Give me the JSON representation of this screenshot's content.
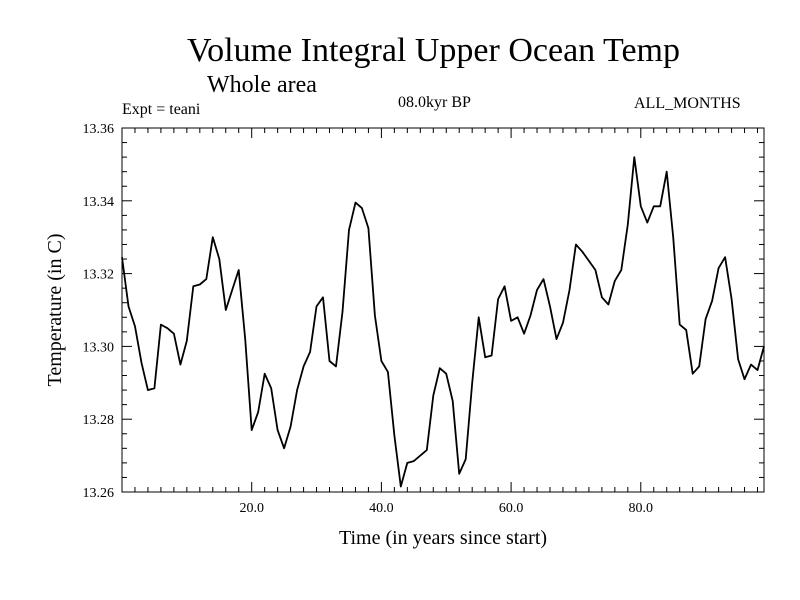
{
  "chart_data": {
    "type": "line",
    "title": "Volume Integral Upper Ocean Temp",
    "subtitle": "Whole area",
    "experiment_label": "Expt = teani",
    "period_label": "08.0kyr BP",
    "months_label": "ALL_MONTHS",
    "xlabel": "Time (in years since start)",
    "ylabel": "Temperature (in C)",
    "xlim": [
      0,
      99
    ],
    "ylim": [
      13.26,
      13.36
    ],
    "x_ticks": [
      20,
      40,
      60,
      80
    ],
    "x_tick_labels": [
      "20.0",
      "40.0",
      "60.0",
      "80.0"
    ],
    "y_ticks": [
      13.26,
      13.28,
      13.3,
      13.32,
      13.34,
      13.36
    ],
    "y_tick_labels": [
      "13.26",
      "13.28",
      "13.30",
      "13.32",
      "13.34",
      "13.36"
    ],
    "series": [
      {
        "name": "Temperature",
        "color": "#000000",
        "x": [
          0,
          1,
          2,
          3,
          4,
          5,
          6,
          7,
          8,
          9,
          10,
          11,
          12,
          13,
          14,
          15,
          16,
          17,
          18,
          19,
          20,
          21,
          22,
          23,
          24,
          25,
          26,
          27,
          28,
          29,
          30,
          31,
          32,
          33,
          34,
          35,
          36,
          37,
          38,
          39,
          40,
          41,
          42,
          43,
          44,
          45,
          46,
          47,
          48,
          49,
          50,
          51,
          52,
          53,
          54,
          55,
          56,
          57,
          58,
          59,
          60,
          61,
          62,
          63,
          64,
          65,
          66,
          67,
          68,
          69,
          70,
          71,
          72,
          73,
          74,
          75,
          76,
          77,
          78,
          79,
          80,
          81,
          82,
          83,
          84,
          85,
          86,
          87,
          88,
          89,
          90,
          91,
          92,
          93,
          94,
          95,
          96,
          97,
          98,
          99
        ],
        "values": [
          13.3245,
          13.311,
          13.3055,
          13.2955,
          13.288,
          13.2885,
          13.306,
          13.305,
          13.3035,
          13.295,
          13.3015,
          13.3165,
          13.317,
          13.3185,
          13.33,
          13.324,
          13.31,
          13.3155,
          13.321,
          13.302,
          13.277,
          13.282,
          13.2925,
          13.2885,
          13.277,
          13.272,
          13.278,
          13.288,
          13.2945,
          13.2985,
          13.311,
          13.3135,
          13.296,
          13.2945,
          13.3095,
          13.332,
          13.3395,
          13.338,
          13.3325,
          13.3085,
          13.296,
          13.293,
          13.2755,
          13.2615,
          13.268,
          13.2685,
          13.27,
          13.2715,
          13.2865,
          13.294,
          13.2925,
          13.285,
          13.265,
          13.269,
          13.29,
          13.308,
          13.297,
          13.2975,
          13.313,
          13.3165,
          13.307,
          13.308,
          13.3035,
          13.3085,
          13.3155,
          13.3185,
          13.311,
          13.302,
          13.3065,
          13.3155,
          13.328,
          13.326,
          13.3235,
          13.321,
          13.3135,
          13.3115,
          13.318,
          13.321,
          13.3335,
          13.352,
          13.3385,
          13.334,
          13.3385,
          13.3385,
          13.348,
          13.33,
          13.306,
          13.3045,
          13.2925,
          13.2945,
          13.3075,
          13.3125,
          13.3215,
          13.3245,
          13.313,
          13.2965,
          13.291,
          13.295,
          13.2935,
          13.3
        ]
      }
    ]
  }
}
